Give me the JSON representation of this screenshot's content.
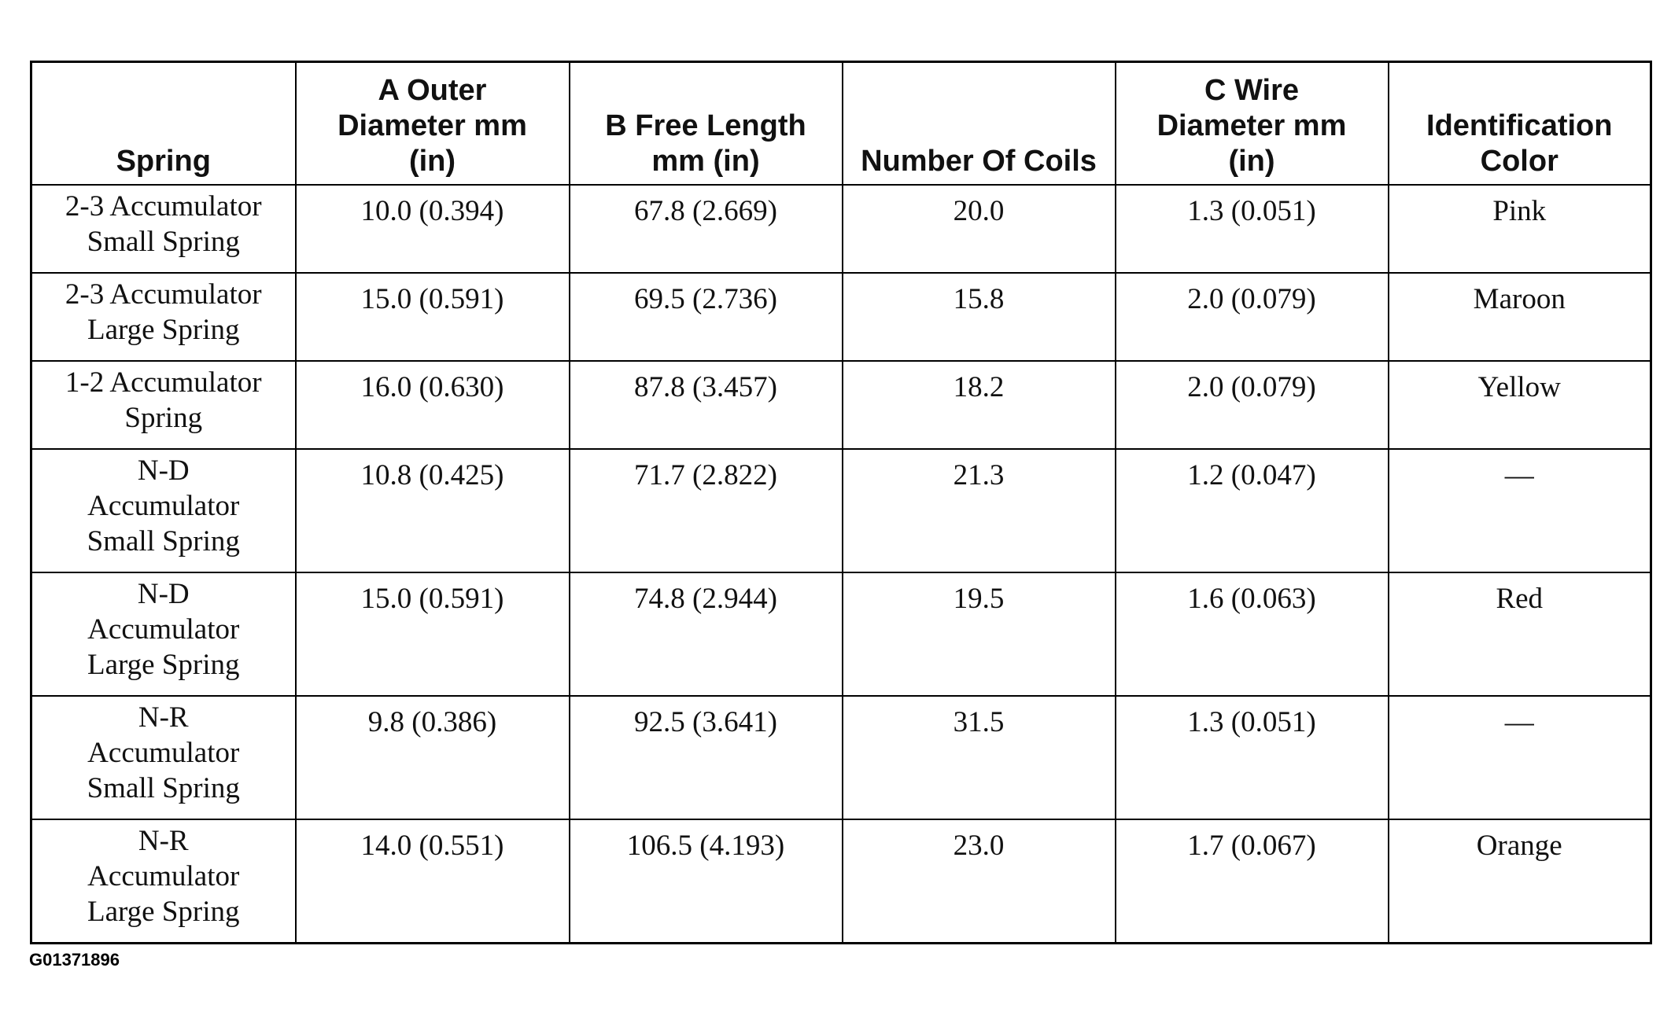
{
  "table": {
    "headers": [
      "Spring",
      "A Outer Diameter mm (in)",
      "B Free Length mm (in)",
      "Number Of Coils",
      "C Wire Diameter mm (in)",
      "Identification Color"
    ],
    "rows": [
      [
        "2-3 Accumulator Small Spring",
        "10.0 (0.394)",
        "67.8 (2.669)",
        "20.0",
        "1.3 (0.051)",
        "Pink"
      ],
      [
        "2-3 Accumulator Large Spring",
        "15.0 (0.591)",
        "69.5 (2.736)",
        "15.8",
        "2.0 (0.079)",
        "Maroon"
      ],
      [
        "1-2 Accumulator Spring",
        "16.0 (0.630)",
        "87.8 (3.457)",
        "18.2",
        "2.0 (0.079)",
        "Yellow"
      ],
      [
        "N-D Accumulator Small Spring",
        "10.8 (0.425)",
        "71.7 (2.822)",
        "21.3",
        "1.2 (0.047)",
        "—"
      ],
      [
        "N-D Accumulator Large Spring",
        "15.0 (0.591)",
        "74.8 (2.944)",
        "19.5",
        "1.6 (0.063)",
        "Red"
      ],
      [
        "N-R Accumulator Small Spring",
        "9.8 (0.386)",
        "92.5 (3.641)",
        "31.5",
        "1.3 (0.051)",
        "—"
      ],
      [
        "N-R Accumulator Large Spring",
        "14.0 (0.551)",
        "106.5 (4.193)",
        "23.0",
        "1.7 (0.067)",
        "Orange"
      ]
    ]
  },
  "figure_id": "G01371896"
}
